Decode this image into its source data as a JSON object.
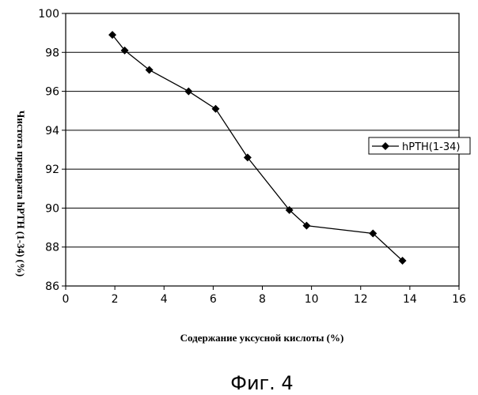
{
  "chart_data": {
    "type": "line",
    "xlabel": "Содержание уксусной кислоты (%)",
    "ylabel": "Чистота препарата hPTH (1-34) (%)",
    "xlim": [
      0,
      16
    ],
    "ylim": [
      86,
      100
    ],
    "x_ticks": [
      0,
      2,
      4,
      6,
      8,
      10,
      12,
      14,
      16
    ],
    "y_ticks": [
      86,
      88,
      90,
      92,
      94,
      96,
      98,
      100
    ],
    "grid": "horizontal",
    "legend_position": "right",
    "series": [
      {
        "name": "hPTH(1-34)",
        "marker": "diamond",
        "x": [
          1.9,
          2.4,
          3.4,
          5.0,
          6.1,
          7.4,
          9.1,
          9.8,
          12.5,
          13.7
        ],
        "y": [
          98.9,
          98.1,
          97.1,
          96.0,
          95.1,
          92.6,
          89.9,
          89.1,
          88.7,
          87.3
        ]
      }
    ]
  },
  "caption": "Фиг. 4",
  "colors": {
    "line": "#000000",
    "grid": "#000000",
    "background": "#ffffff"
  }
}
